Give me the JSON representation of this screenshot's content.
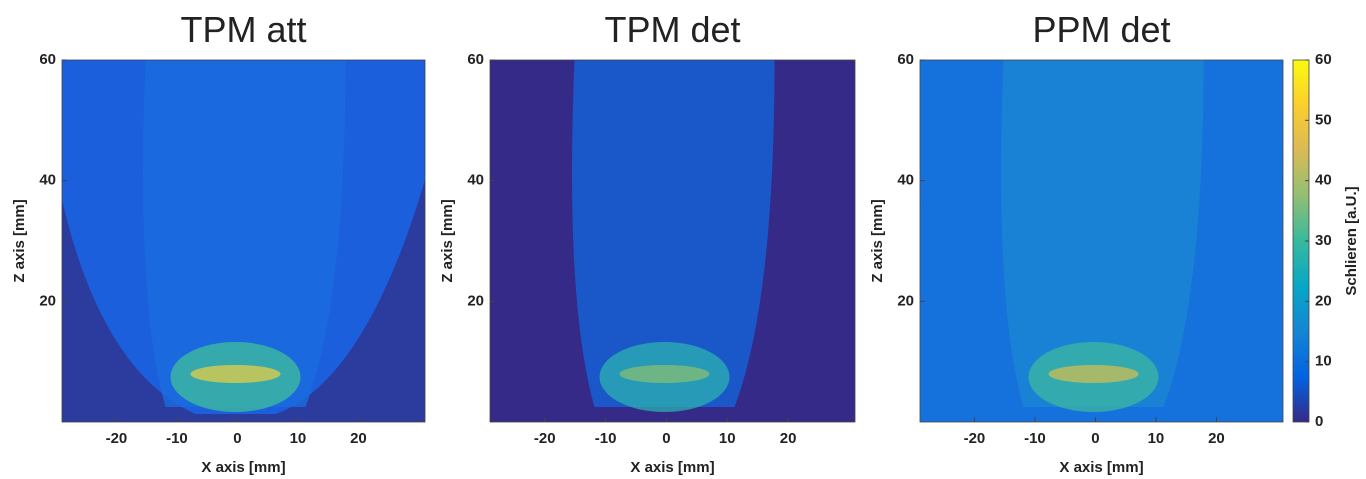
{
  "chart_data": [
    {
      "type": "heatmap",
      "title": "TPM att",
      "xlabel": "X axis [mm]",
      "ylabel": "Z axis [mm]",
      "xlim": [
        -29,
        31
      ],
      "ylim": [
        0,
        60
      ],
      "xticks": [
        -20,
        -10,
        0,
        10,
        20
      ],
      "yticks": [
        20,
        40,
        60
      ]
    },
    {
      "type": "heatmap",
      "title": "TPM det",
      "xlabel": "X axis [mm]",
      "ylabel": "Z axis [mm]",
      "xlim": [
        -29,
        31
      ],
      "ylim": [
        0,
        60
      ],
      "xticks": [
        -20,
        -10,
        0,
        10,
        20
      ],
      "yticks": [
        20,
        40,
        60
      ]
    },
    {
      "type": "heatmap",
      "title": "PPM det",
      "xlabel": "X axis [mm]",
      "ylabel": "Z axis [mm]",
      "xlim": [
        -29,
        31
      ],
      "ylim": [
        0,
        60
      ],
      "xticks": [
        -20,
        -10,
        0,
        10,
        20
      ],
      "yticks": [
        20,
        40,
        60
      ],
      "colorbar": {
        "label": "Schlieren [a.U.]",
        "lim": [
          0,
          60
        ],
        "ticks": [
          0,
          10,
          20,
          30,
          40,
          50,
          60
        ],
        "colors": [
          "#352a87",
          "#0363e1",
          "#1485d4",
          "#06a7c6",
          "#38b99e",
          "#92bf73",
          "#d9ba56",
          "#fcce2e",
          "#f9fb0e"
        ]
      }
    }
  ]
}
